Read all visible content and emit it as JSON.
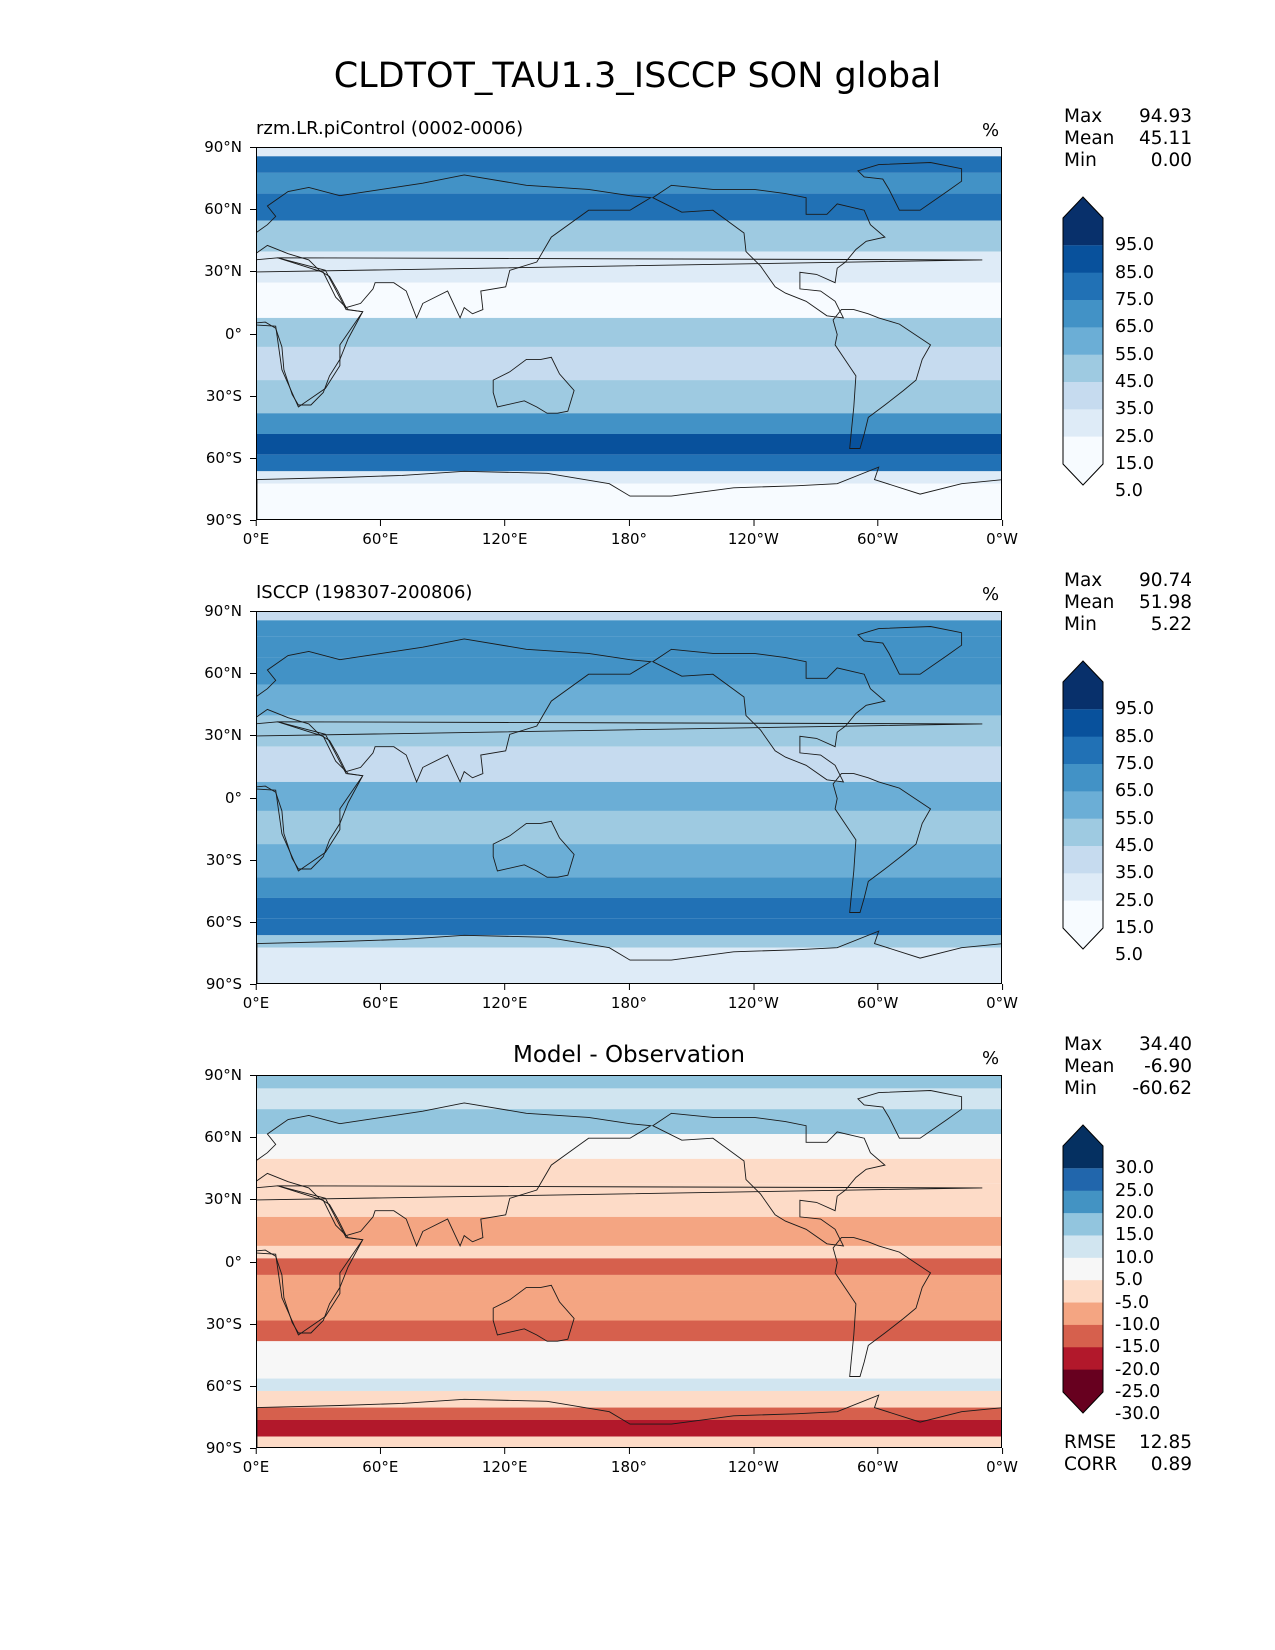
{
  "figure": {
    "title": "CLDTOT_TAU1.3_ISCCP SON global",
    "y_ticks": [
      "90°N",
      "60°N",
      "30°N",
      "0°",
      "30°S",
      "60°S",
      "90°S"
    ],
    "x_ticks": [
      "0°E",
      "60°E",
      "120°E",
      "180°",
      "120°W",
      "60°W",
      "0°W"
    ]
  },
  "panels": [
    {
      "title": "rzm.LR.piControl (0002-0006)",
      "unit": "%",
      "stats": [
        {
          "label": "Max",
          "value": "94.93"
        },
        {
          "label": "Mean",
          "value": "45.11"
        },
        {
          "label": "Min",
          "value": "0.00"
        }
      ],
      "colorbar_labels": [
        "95.0",
        "85.0",
        "75.0",
        "65.0",
        "55.0",
        "45.0",
        "35.0",
        "25.0",
        "15.0",
        "5.0"
      ]
    },
    {
      "title": "ISCCP (198307-200806)",
      "unit": "%",
      "stats": [
        {
          "label": "Max",
          "value": "90.74"
        },
        {
          "label": "Mean",
          "value": "51.98"
        },
        {
          "label": "Min",
          "value": "5.22"
        }
      ],
      "colorbar_labels": [
        "95.0",
        "85.0",
        "75.0",
        "65.0",
        "55.0",
        "45.0",
        "35.0",
        "25.0",
        "15.0",
        "5.0"
      ]
    },
    {
      "title": "Model - Observation",
      "unit": "%",
      "stats": [
        {
          "label": "Max",
          "value": "34.40"
        },
        {
          "label": "Mean",
          "value": "-6.90"
        },
        {
          "label": "Min",
          "value": "-60.62"
        }
      ],
      "colorbar_labels": [
        "30.0",
        "25.0",
        "20.0",
        "15.0",
        "10.0",
        "5.0",
        "-5.0",
        "-10.0",
        "-15.0",
        "-20.0",
        "-25.0",
        "-30.0"
      ],
      "footer": [
        {
          "label": "RMSE",
          "value": "12.85"
        },
        {
          "label": "CORR",
          "value": "0.89"
        }
      ]
    }
  ],
  "colors": {
    "seq": [
      "#f7fbff",
      "#deebf7",
      "#c6dbef",
      "#9ecae1",
      "#6baed6",
      "#4292c6",
      "#2171b5",
      "#08519c",
      "#08306b"
    ],
    "div": [
      "#67001f",
      "#b2182b",
      "#d6604d",
      "#f4a582",
      "#fddbc7",
      "#f7f7f7",
      "#d1e5f0",
      "#92c5de",
      "#4393c3",
      "#2166ac",
      "#053061"
    ]
  }
}
